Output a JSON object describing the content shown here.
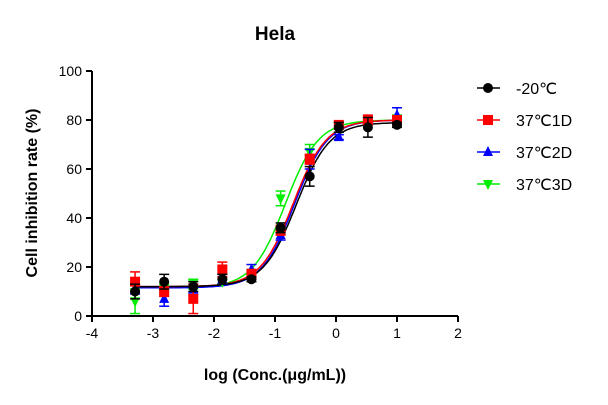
{
  "chart_data": {
    "type": "scatter",
    "title": "Hela",
    "xlabel": "log (Conc.(μg/mL))",
    "ylabel": "Cell inhibition rate (%)",
    "xlim": [
      -4,
      2
    ],
    "ylim": [
      0,
      100
    ],
    "xticks": [
      -4,
      -3,
      -2,
      -1,
      0,
      1,
      2
    ],
    "yticks": [
      0,
      20,
      40,
      60,
      80,
      100
    ],
    "grid": false,
    "legend_position": "right",
    "x": [
      -3.294,
      -2.817,
      -2.34,
      -1.863,
      -1.386,
      -0.908,
      -0.431,
      0.046,
      0.523,
      1.0
    ],
    "series": [
      {
        "name": "-20℃",
        "color": "#000000",
        "marker": "circle",
        "values": [
          10,
          14,
          12,
          15,
          15,
          36,
          57,
          77,
          77,
          78
        ],
        "errors": [
          3,
          3,
          2,
          2,
          1,
          2,
          4,
          2,
          4,
          1
        ],
        "fit": {
          "bottom": 12,
          "top": 79,
          "logIC50": -0.65,
          "hill": 1.6
        }
      },
      {
        "name": "37℃1D",
        "color": "#ff0000",
        "marker": "square",
        "values": [
          14,
          10,
          7,
          19,
          17,
          35,
          64,
          78,
          80,
          80
        ],
        "errors": [
          4,
          2,
          6,
          3,
          2,
          2,
          2,
          1,
          2,
          1
        ],
        "fit": {
          "bottom": 12,
          "top": 80,
          "logIC50": -0.7,
          "hill": 1.6
        }
      },
      {
        "name": "37℃2D",
        "color": "#0000ff",
        "marker": "triangle-up",
        "values": [
          11,
          7,
          11,
          15,
          19,
          33,
          64,
          73,
          80,
          82
        ],
        "errors": [
          2,
          3,
          2,
          2,
          2,
          2,
          4,
          1,
          1,
          3
        ],
        "fit": {
          "bottom": 11.5,
          "top": 80,
          "logIC50": -0.68,
          "hill": 1.6
        }
      },
      {
        "name": "37℃3D",
        "color": "#00ee00",
        "marker": "triangle-down",
        "values": [
          6,
          11,
          13,
          14,
          17,
          48,
          67,
          77,
          79,
          80
        ],
        "errors": [
          5,
          2,
          2,
          1,
          2,
          3,
          3,
          2,
          1,
          2
        ],
        "fit": {
          "bottom": 11.5,
          "top": 80,
          "logIC50": -0.83,
          "hill": 1.6
        }
      }
    ]
  }
}
